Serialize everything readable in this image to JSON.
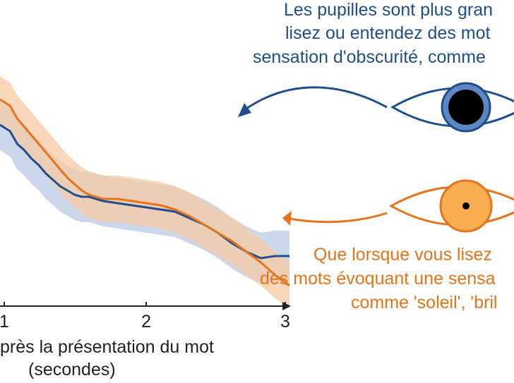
{
  "annotations": {
    "dark": {
      "lines": [
        "Les pupilles sont plus gran",
        "lisez ou entendez des mot",
        "sensation d'obscurité, comme"
      ],
      "color": "#1f4e8c"
    },
    "bright": {
      "lines": [
        "Que lorsque vous lisez",
        "des mots évoquant une sensa",
        "comme 'soleil', 'bril"
      ],
      "color": "#e8731a"
    }
  },
  "icons": {
    "dark_eye": "eye-large-pupil-icon",
    "bright_eye": "eye-small-pupil-icon",
    "arrow": "curved-arrow-icon"
  },
  "chart_data": {
    "type": "line",
    "xlabel_lines": [
      "près la présentation du mot",
      "(secondes)"
    ],
    "x_ticks": [
      "1",
      "2",
      "3"
    ],
    "xlim": [
      0.98,
      3.0
    ],
    "ylim": [
      0,
      1
    ],
    "grid": false,
    "series": [
      {
        "color": "#1f4e8c",
        "band_color": "#b9cbe4",
        "band_halfwidth": 0.12,
        "points": [
          [
            0.98,
            0.81
          ],
          [
            1.05,
            0.78
          ],
          [
            1.1,
            0.72
          ],
          [
            1.15,
            0.69
          ],
          [
            1.2,
            0.65
          ],
          [
            1.25,
            0.62
          ],
          [
            1.3,
            0.58
          ],
          [
            1.35,
            0.55
          ],
          [
            1.4,
            0.52
          ],
          [
            1.45,
            0.5
          ],
          [
            1.5,
            0.48
          ],
          [
            1.55,
            0.47
          ],
          [
            1.6,
            0.47
          ],
          [
            1.65,
            0.46
          ],
          [
            1.7,
            0.45
          ],
          [
            1.8,
            0.44
          ],
          [
            1.9,
            0.43
          ],
          [
            2.0,
            0.42
          ],
          [
            2.1,
            0.41
          ],
          [
            2.2,
            0.4
          ],
          [
            2.3,
            0.37
          ],
          [
            2.4,
            0.34
          ],
          [
            2.5,
            0.3
          ],
          [
            2.6,
            0.25
          ],
          [
            2.7,
            0.21
          ],
          [
            2.8,
            0.18
          ],
          [
            2.9,
            0.19
          ],
          [
            3.0,
            0.19
          ]
        ]
      },
      {
        "color": "#e8731a",
        "band_color": "#f7c9a4",
        "band_halfwidth": 0.11,
        "points": [
          [
            0.98,
            0.93
          ],
          [
            1.05,
            0.9
          ],
          [
            1.1,
            0.84
          ],
          [
            1.15,
            0.8
          ],
          [
            1.2,
            0.76
          ],
          [
            1.25,
            0.72
          ],
          [
            1.3,
            0.68
          ],
          [
            1.35,
            0.64
          ],
          [
            1.4,
            0.6
          ],
          [
            1.45,
            0.56
          ],
          [
            1.5,
            0.53
          ],
          [
            1.55,
            0.5
          ],
          [
            1.6,
            0.48
          ],
          [
            1.65,
            0.47
          ],
          [
            1.7,
            0.46
          ],
          [
            1.8,
            0.46
          ],
          [
            1.9,
            0.45
          ],
          [
            2.0,
            0.44
          ],
          [
            2.1,
            0.43
          ],
          [
            2.2,
            0.41
          ],
          [
            2.3,
            0.38
          ],
          [
            2.4,
            0.34
          ],
          [
            2.5,
            0.3
          ],
          [
            2.6,
            0.26
          ],
          [
            2.7,
            0.21
          ],
          [
            2.8,
            0.16
          ],
          [
            2.9,
            0.1
          ],
          [
            3.0,
            0.05
          ]
        ]
      }
    ]
  }
}
